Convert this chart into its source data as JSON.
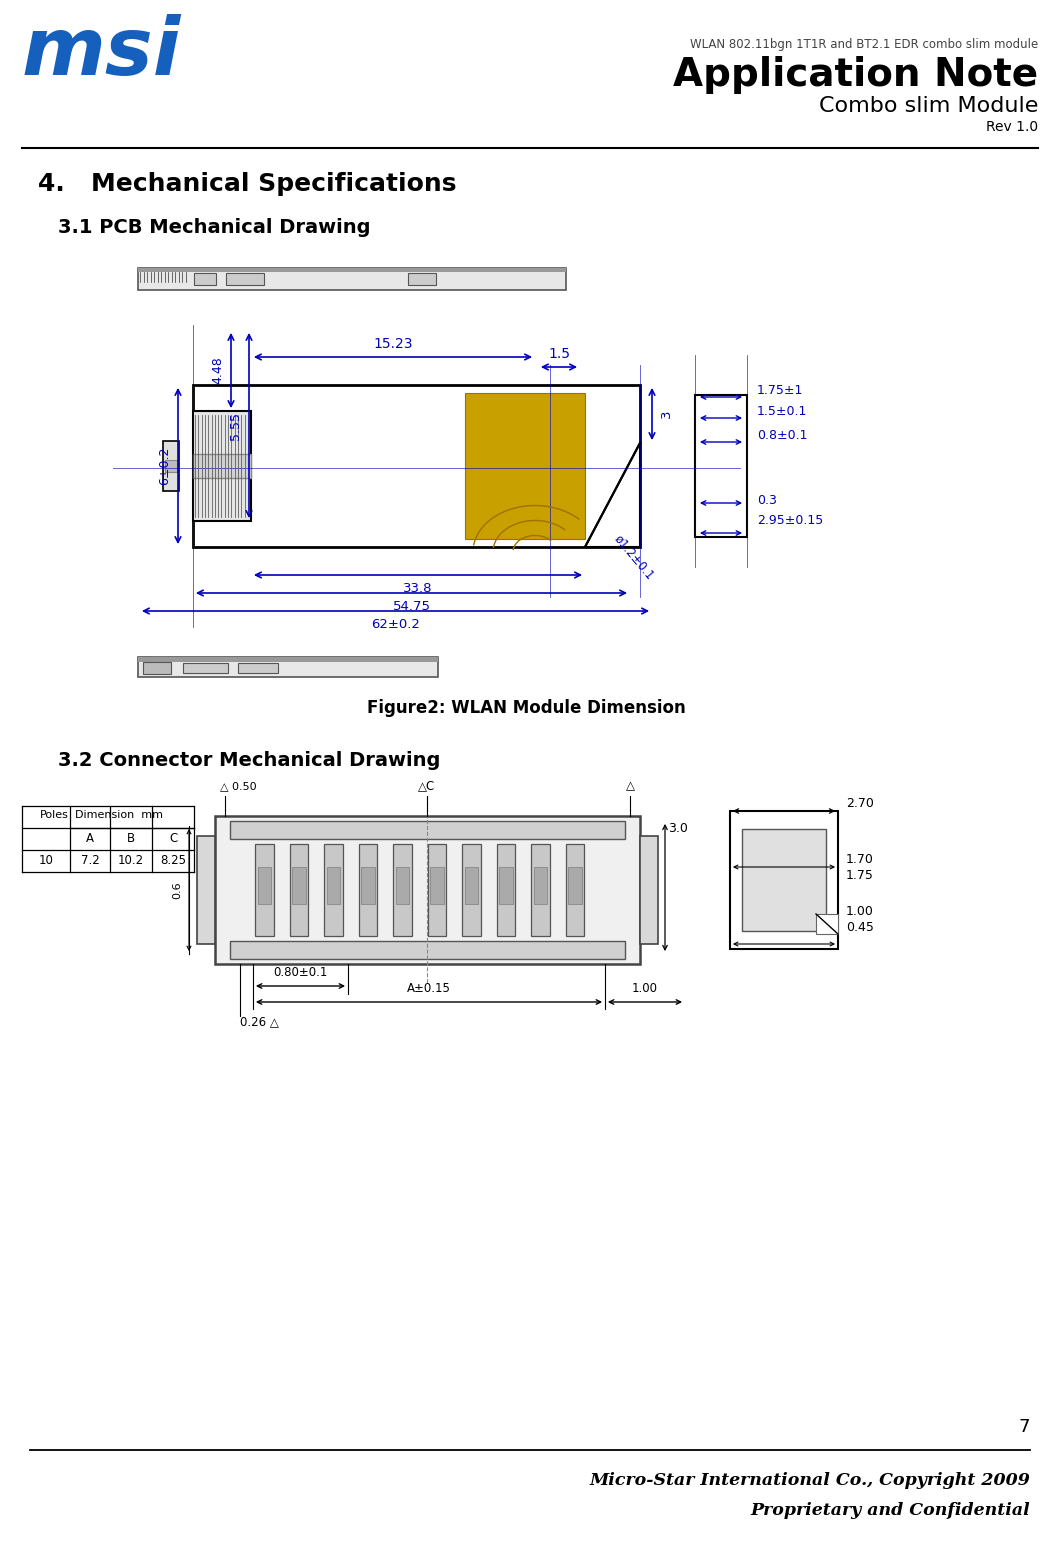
{
  "page_width": 10.52,
  "page_height": 15.57,
  "dpi": 100,
  "bg_color": "#ffffff",
  "header": {
    "subtitle": "WLAN 802.11bgn 1T1R and BT2.1 EDR combo slim module",
    "title": "Application Note",
    "module": "Combo slim Module",
    "rev": "Rev 1.0",
    "logo_color": "#1560bd"
  },
  "section_title": "4.   Mechanical Specifications",
  "sub_section1": "3.1 PCB Mechanical Drawing",
  "figure_caption": "Figure2: WLAN Module Dimension",
  "sub_section2": "3.2 Connector Mechanical Drawing",
  "page_number": "7",
  "footer_line1": "Micro-Star International Co., Copyright 2009",
  "footer_line2": "Proprietary and Confidential",
  "dim_color": "#0000bb",
  "draw_color": "#000000",
  "accent_color": "#c8a000"
}
